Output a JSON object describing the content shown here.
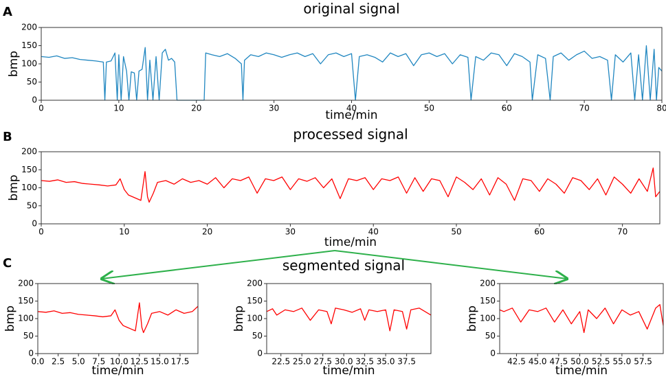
{
  "panel_labels": [
    "A",
    "B",
    "C"
  ],
  "segment_title": "segmented signal",
  "chart_data": [
    {
      "type": "line",
      "title": "original signal",
      "x_label": "time/min",
      "y_label": "bmp",
      "color": "#1f86c0",
      "xlim": [
        0,
        80
      ],
      "ylim": [
        0,
        200
      ],
      "xticks": [
        0,
        10,
        20,
        30,
        40,
        50,
        60,
        70,
        80
      ],
      "yticks": [
        0,
        50,
        100,
        150,
        200
      ],
      "x": [
        0,
        1,
        2,
        3,
        4,
        5,
        6,
        7,
        8,
        8.2,
        8.4,
        9,
        9.5,
        9.8,
        10,
        10.3,
        10.6,
        11,
        11.3,
        11.6,
        12,
        12.3,
        12.6,
        13,
        13.4,
        13.7,
        14,
        14.4,
        14.8,
        15.2,
        15.6,
        16,
        16.4,
        16.8,
        17.2,
        17.5,
        21,
        21.2,
        22,
        23,
        24,
        25,
        25.8,
        26,
        26.2,
        27,
        28,
        29,
        30,
        31,
        32,
        33,
        34,
        35,
        36,
        37,
        38,
        39,
        40,
        40.5,
        41,
        42,
        43,
        44,
        45,
        46,
        47,
        48,
        49,
        50,
        51,
        52,
        53,
        54,
        55,
        55.4,
        56,
        57,
        58,
        59,
        60,
        61,
        62,
        63,
        63.3,
        64,
        65,
        65.6,
        66,
        67,
        68,
        69,
        70,
        71,
        72,
        73,
        73.5,
        74,
        75,
        76,
        76.5,
        77,
        77.5,
        78,
        78.5,
        79,
        79.3,
        79.6,
        80
      ],
      "values": [
        120,
        118,
        122,
        115,
        117,
        112,
        110,
        108,
        105,
        0,
        105,
        108,
        130,
        0,
        125,
        0,
        120,
        80,
        0,
        78,
        75,
        0,
        80,
        85,
        145,
        0,
        110,
        0,
        120,
        0,
        130,
        140,
        110,
        115,
        105,
        0,
        0,
        130,
        125,
        120,
        128,
        115,
        100,
        0,
        110,
        125,
        120,
        130,
        125,
        118,
        125,
        130,
        120,
        128,
        100,
        125,
        130,
        120,
        128,
        0,
        120,
        125,
        118,
        105,
        130,
        120,
        128,
        95,
        125,
        130,
        120,
        128,
        100,
        125,
        118,
        0,
        120,
        110,
        130,
        125,
        95,
        128,
        120,
        105,
        0,
        125,
        115,
        0,
        120,
        130,
        110,
        125,
        135,
        115,
        120,
        110,
        0,
        125,
        105,
        130,
        0,
        125,
        0,
        150,
        0,
        140,
        0,
        90,
        80
      ]
    },
    {
      "type": "line",
      "title": "processed signal",
      "x_label": "time/min",
      "y_label": "bmp",
      "color": "#ff0000",
      "xlim": [
        0,
        74.5
      ],
      "ylim": [
        0,
        200
      ],
      "xticks": [
        0,
        10,
        20,
        30,
        40,
        50,
        60,
        70
      ],
      "yticks": [
        0,
        50,
        100,
        150,
        200
      ],
      "x": [
        0,
        1,
        2,
        3,
        4,
        5,
        6,
        7,
        8,
        9,
        9.5,
        10,
        10.5,
        11,
        11.5,
        12,
        12.5,
        12.8,
        13,
        13.5,
        14,
        15,
        16,
        17,
        18,
        19,
        20,
        21,
        22,
        23,
        24,
        25,
        26,
        27,
        28,
        29,
        30,
        31,
        32,
        33,
        34,
        35,
        36,
        37,
        38,
        39,
        40,
        41,
        42,
        43,
        44,
        45,
        46,
        47,
        48,
        49,
        50,
        51,
        52,
        53,
        54,
        55,
        56,
        57,
        58,
        59,
        60,
        61,
        62,
        63,
        64,
        65,
        66,
        67,
        68,
        69,
        70,
        71,
        72,
        73,
        73.7,
        74,
        74.5
      ],
      "values": [
        120,
        118,
        122,
        115,
        117,
        112,
        110,
        108,
        105,
        108,
        125,
        95,
        80,
        75,
        70,
        65,
        145,
        75,
        60,
        85,
        115,
        120,
        110,
        125,
        115,
        120,
        110,
        128,
        100,
        125,
        120,
        130,
        85,
        125,
        120,
        130,
        95,
        125,
        118,
        128,
        100,
        125,
        70,
        125,
        120,
        128,
        95,
        125,
        120,
        130,
        85,
        128,
        90,
        125,
        120,
        75,
        130,
        115,
        95,
        125,
        80,
        128,
        110,
        65,
        125,
        120,
        90,
        125,
        110,
        85,
        128,
        120,
        95,
        125,
        80,
        130,
        110,
        85,
        125,
        90,
        155,
        75,
        90
      ]
    },
    {
      "type": "line",
      "x_label": "time/min",
      "y_label": "bmp",
      "color": "#ff0000",
      "xlim": [
        0,
        19.7
      ],
      "ylim": [
        0,
        200
      ],
      "xticks": [
        {
          "value": 0,
          "label": "0.0"
        },
        2.5,
        {
          "value": 5,
          "label": "5.0"
        },
        7.5,
        {
          "value": 10,
          "label": "10.0"
        },
        12.5,
        {
          "value": 15,
          "label": "15.0"
        },
        17.5
      ],
      "yticks": [
        0,
        50,
        100,
        150,
        200
      ],
      "x": [
        0,
        1,
        2,
        3,
        4,
        5,
        6,
        7,
        8,
        9,
        9.5,
        10,
        10.5,
        11,
        11.5,
        12,
        12.5,
        12.8,
        13,
        13.5,
        14,
        15,
        16,
        17,
        18,
        19,
        19.7
      ],
      "values": [
        120,
        118,
        122,
        115,
        117,
        112,
        110,
        108,
        105,
        108,
        125,
        95,
        80,
        75,
        70,
        65,
        145,
        75,
        60,
        85,
        115,
        120,
        110,
        125,
        115,
        120,
        135
      ]
    },
    {
      "type": "line",
      "x_label": "time/min",
      "y_label": "bmp",
      "color": "#ff0000",
      "xlim": [
        20.8,
        40.4
      ],
      "ylim": [
        0,
        200
      ],
      "xticks": [
        22.5,
        {
          "value": 25,
          "label": "25.0"
        },
        27.5,
        {
          "value": 30,
          "label": "30.0"
        },
        32.5,
        {
          "value": 35,
          "label": "35.0"
        },
        37.5
      ],
      "yticks": [
        0,
        50,
        100,
        150,
        200
      ],
      "x": [
        20.8,
        21.5,
        22,
        23,
        24,
        25,
        26,
        27,
        28,
        28.5,
        29,
        30,
        31,
        32,
        32.5,
        33,
        34,
        35,
        35.5,
        36,
        37,
        37.5,
        38,
        39,
        40.4
      ],
      "values": [
        120,
        128,
        110,
        125,
        120,
        130,
        95,
        125,
        120,
        85,
        130,
        125,
        118,
        128,
        95,
        125,
        120,
        125,
        65,
        125,
        120,
        70,
        125,
        130,
        110
      ]
    },
    {
      "type": "line",
      "x_label": "time/min",
      "y_label": "bmp",
      "color": "#ff0000",
      "xlim": [
        40.5,
        59.9
      ],
      "ylim": [
        0,
        200
      ],
      "xticks": [
        42.5,
        {
          "value": 45,
          "label": "45.0"
        },
        47.5,
        {
          "value": 50,
          "label": "50.0"
        },
        52.5,
        {
          "value": 55,
          "label": "55.0"
        },
        57.5
      ],
      "yticks": [
        0,
        50,
        100,
        150,
        200
      ],
      "x": [
        40.5,
        41,
        42,
        43,
        44,
        45,
        46,
        47,
        48,
        49,
        50,
        50.5,
        51,
        52,
        53,
        54,
        55,
        56,
        57,
        58,
        59,
        59.5,
        59.9
      ],
      "values": [
        125,
        120,
        130,
        90,
        125,
        120,
        130,
        90,
        125,
        85,
        120,
        60,
        125,
        100,
        130,
        85,
        125,
        110,
        120,
        70,
        130,
        140,
        80
      ]
    }
  ]
}
